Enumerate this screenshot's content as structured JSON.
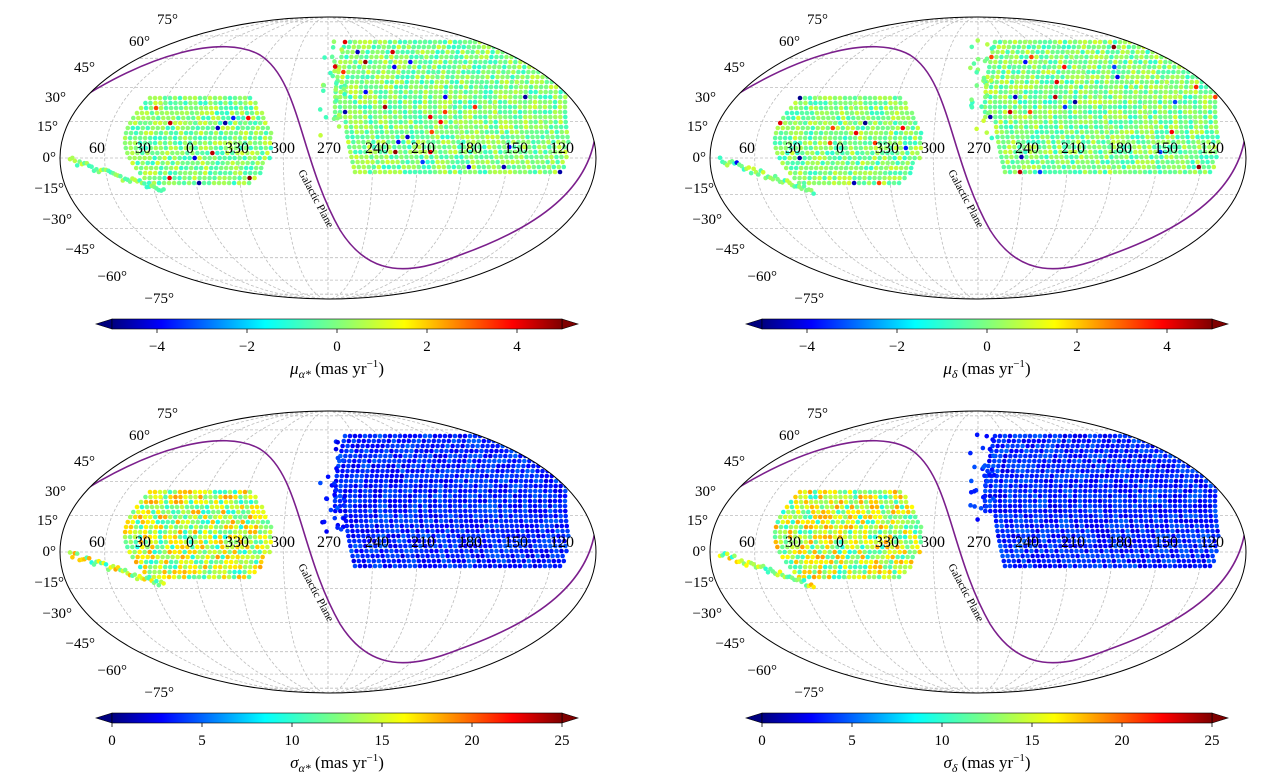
{
  "chart_data": [
    {
      "type": "sky-map",
      "projection": "mollweide",
      "colorbar": {
        "label_symbol": "μ",
        "label_subscript": "α*",
        "label_unit": "(mas yr",
        "label_exponent": "−1",
        "label_close": ")",
        "min": -5,
        "max": 5,
        "ticks": [
          -4,
          -2,
          0,
          2,
          4
        ],
        "tick_labels": [
          "−4",
          "−2",
          "0",
          "2",
          "4"
        ],
        "extend": "both",
        "colormap": "jet"
      },
      "coverage_value": 0.0
    },
    {
      "type": "sky-map",
      "projection": "mollweide",
      "colorbar": {
        "label_symbol": "μ",
        "label_subscript": "δ",
        "label_unit": "(mas yr",
        "label_exponent": "−1",
        "label_close": ")",
        "min": -5,
        "max": 5,
        "ticks": [
          -4,
          -2,
          0,
          2,
          4
        ],
        "tick_labels": [
          "−4",
          "−2",
          "0",
          "2",
          "4"
        ],
        "extend": "both",
        "colormap": "jet"
      },
      "coverage_value": 0.0
    },
    {
      "type": "sky-map",
      "projection": "mollweide",
      "colorbar": {
        "label_symbol": "σ",
        "label_subscript": "α*",
        "label_unit": "(mas yr",
        "label_exponent": "−1",
        "label_close": ")",
        "min": 0,
        "max": 25,
        "ticks": [
          0,
          5,
          10,
          15,
          20,
          25
        ],
        "tick_labels": [
          "0",
          "5",
          "10",
          "15",
          "20",
          "25"
        ],
        "extend": "both",
        "colormap": "jet"
      },
      "coverage_value_region_a": 14,
      "coverage_value_region_b": 4
    },
    {
      "type": "sky-map",
      "projection": "mollweide",
      "colorbar": {
        "label_symbol": "σ",
        "label_subscript": "δ",
        "label_unit": "(mas yr",
        "label_exponent": "−1",
        "label_close": ")",
        "min": 0,
        "max": 25,
        "ticks": [
          0,
          5,
          10,
          15,
          20,
          25
        ],
        "tick_labels": [
          "0",
          "5",
          "10",
          "15",
          "20",
          "25"
        ],
        "extend": "both",
        "colormap": "jet"
      },
      "coverage_value_region_a": 14,
      "coverage_value_region_b": 4
    }
  ],
  "shared": {
    "lat_labels": [
      "75°",
      "60°",
      "45°",
      "30°",
      "15°",
      "0°",
      "−15°",
      "−30°",
      "−45°",
      "−60°",
      "−75°"
    ],
    "lon_labels": [
      "60",
      "30",
      "0",
      "330",
      "300",
      "270",
      "240",
      "210",
      "180",
      "150",
      "120"
    ],
    "galactic_plane_label": "Galactic Plane",
    "galactic_plane_color": "#7b1f8c",
    "grid_color": "#bdbdbd"
  }
}
